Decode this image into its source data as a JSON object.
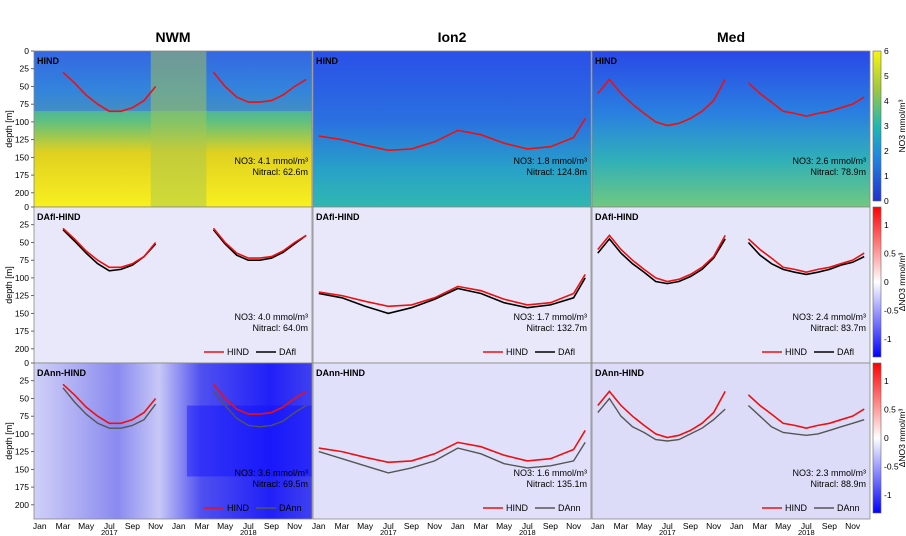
{
  "columns": [
    "NWM",
    "Ion2",
    "Med"
  ],
  "ylabel": "depth [m]",
  "depth_ticks": [
    0,
    25,
    50,
    75,
    100,
    125,
    150,
    175,
    200
  ],
  "month_ticks": [
    "Jan",
    "Mar",
    "May",
    "Jul",
    "Sep",
    "Nov",
    "Jan",
    "Mar",
    "May",
    "Jul",
    "Sep",
    "Nov"
  ],
  "year_labels": [
    "2017",
    "2018"
  ],
  "colorbars": [
    {
      "label": "NO3 mmol/m³",
      "ticks": [
        "0",
        "1",
        "2",
        "3",
        "4",
        "5",
        "6"
      ],
      "colors": {
        "low": "#1f2fd0",
        "mid": "#20b0b0",
        "high": "#f8f410"
      }
    },
    {
      "label": "ΔNO3 mmol/m³",
      "ticks": [
        "1",
        "0.5",
        "0",
        "-0.5",
        "-1"
      ],
      "colors": {
        "low": "#0000ff",
        "mid": "#ffffff",
        "high": "#ff0000"
      }
    },
    {
      "label": "ΔNO3 mmol/m³",
      "ticks": [
        "1",
        "0.5",
        "0",
        "-0.5",
        "-1"
      ],
      "colors": {
        "low": "#0000ff",
        "mid": "#ffffff",
        "high": "#ff0000"
      }
    }
  ],
  "panels": [
    {
      "row": 0,
      "col": 0,
      "title": "HIND",
      "stat1": "NO3: 4.1 mmol/m³",
      "stat2": "Nitracl: 62.6m",
      "legend": [],
      "bg": "#f0d020"
    },
    {
      "row": 0,
      "col": 1,
      "title": "HIND",
      "stat1": "NO3: 1.8 mmol/m³",
      "stat2": "Nitracl: 124.8m",
      "legend": [],
      "bg": "#40b8b0"
    },
    {
      "row": 0,
      "col": 2,
      "title": "HIND",
      "stat1": "NO3: 2.6 mmol/m³",
      "stat2": "Nitracl: 78.9m",
      "legend": [],
      "bg": "#58c090"
    },
    {
      "row": 1,
      "col": 0,
      "title": "DAfl-HIND",
      "stat1": "NO3: 4.0 mmol/m³",
      "stat2": "Nitracl: 64.0m",
      "legend": [
        "HIND",
        "DAfl"
      ],
      "bg": "#e6e6fa"
    },
    {
      "row": 1,
      "col": 1,
      "title": "DAfl-HIND",
      "stat1": "NO3: 1.7 mmol/m³",
      "stat2": "Nitracl: 132.7m",
      "legend": [
        "HIND",
        "DAfl"
      ],
      "bg": "#e6e6fa"
    },
    {
      "row": 1,
      "col": 2,
      "title": "DAfl-HIND",
      "stat1": "NO3: 2.4 mmol/m³",
      "stat2": "Nitracl: 83.7m",
      "legend": [
        "HIND",
        "DAfl"
      ],
      "bg": "#e6e6fa"
    },
    {
      "row": 2,
      "col": 0,
      "title": "DAnn-HIND",
      "stat1": "NO3: 3.6 mmol/m³",
      "stat2": "Nitracl: 69.5m",
      "legend": [
        "HIND",
        "DAnn"
      ],
      "bg": "#b8b8ee"
    },
    {
      "row": 2,
      "col": 1,
      "title": "DAnn-HIND",
      "stat1": "NO3: 1.6 mmol/m³",
      "stat2": "Nitracl: 135.1m",
      "legend": [
        "HIND",
        "DAnn"
      ],
      "bg": "#e0e0fa"
    },
    {
      "row": 2,
      "col": 2,
      "title": "DAnn-HIND",
      "stat1": "NO3: 2.3 mmol/m³",
      "stat2": "Nitracl: 88.9m",
      "legend": [
        "HIND",
        "DAnn"
      ],
      "bg": "#d8d8f8"
    }
  ],
  "chart_data": {
    "type": "heatmap",
    "x_range": [
      "2017-01",
      "2018-12"
    ],
    "y_range_depth_m": [
      0,
      220
    ],
    "nitracline_depth_m": {
      "NWM": {
        "months": [
          1,
          2,
          3,
          4,
          5,
          6,
          7,
          8,
          9,
          10,
          11,
          13,
          14,
          15,
          16,
          17,
          18,
          19,
          20,
          21,
          22,
          23,
          24
        ],
        "HIND": [
          null,
          null,
          30,
          45,
          62,
          75,
          85,
          85,
          80,
          70,
          50,
          null,
          null,
          null,
          30,
          50,
          65,
          72,
          72,
          70,
          62,
          50,
          40
        ],
        "DAfl": [
          null,
          null,
          32,
          48,
          65,
          80,
          90,
          88,
          82,
          70,
          52,
          null,
          null,
          null,
          32,
          52,
          68,
          75,
          75,
          72,
          64,
          52,
          40
        ],
        "DAnn": [
          null,
          null,
          35,
          55,
          72,
          85,
          92,
          92,
          88,
          80,
          58,
          null,
          null,
          null,
          40,
          60,
          78,
          88,
          90,
          88,
          82,
          70,
          60
        ]
      },
      "Ion2": {
        "months": [
          1,
          3,
          5,
          7,
          9,
          11,
          13,
          15,
          17,
          19,
          21,
          23,
          24
        ],
        "HIND": [
          120,
          125,
          133,
          140,
          138,
          128,
          112,
          118,
          130,
          138,
          135,
          122,
          95
        ],
        "DAfl": [
          122,
          128,
          140,
          150,
          142,
          130,
          115,
          122,
          135,
          142,
          138,
          128,
          100
        ],
        "DAnn": [
          125,
          135,
          145,
          155,
          148,
          138,
          120,
          128,
          142,
          148,
          145,
          138,
          112
        ]
      },
      "Med": {
        "months": [
          1,
          2,
          3,
          4,
          5,
          6,
          7,
          8,
          9,
          10,
          11,
          12,
          13,
          14,
          15,
          16,
          17,
          18,
          19,
          20,
          21,
          22,
          23,
          24
        ],
        "HIND": [
          60,
          40,
          60,
          75,
          88,
          100,
          105,
          102,
          95,
          85,
          70,
          40,
          null,
          45,
          60,
          72,
          85,
          88,
          92,
          88,
          85,
          80,
          75,
          65
        ],
        "DAfl": [
          65,
          45,
          65,
          80,
          92,
          105,
          108,
          105,
          98,
          88,
          72,
          45,
          null,
          50,
          68,
          80,
          88,
          92,
          95,
          92,
          88,
          82,
          78,
          70
        ],
        "DAnn": [
          70,
          50,
          75,
          90,
          98,
          108,
          110,
          108,
          100,
          92,
          80,
          65,
          null,
          60,
          75,
          90,
          98,
          100,
          102,
          100,
          95,
          90,
          85,
          80
        ]
      }
    }
  }
}
